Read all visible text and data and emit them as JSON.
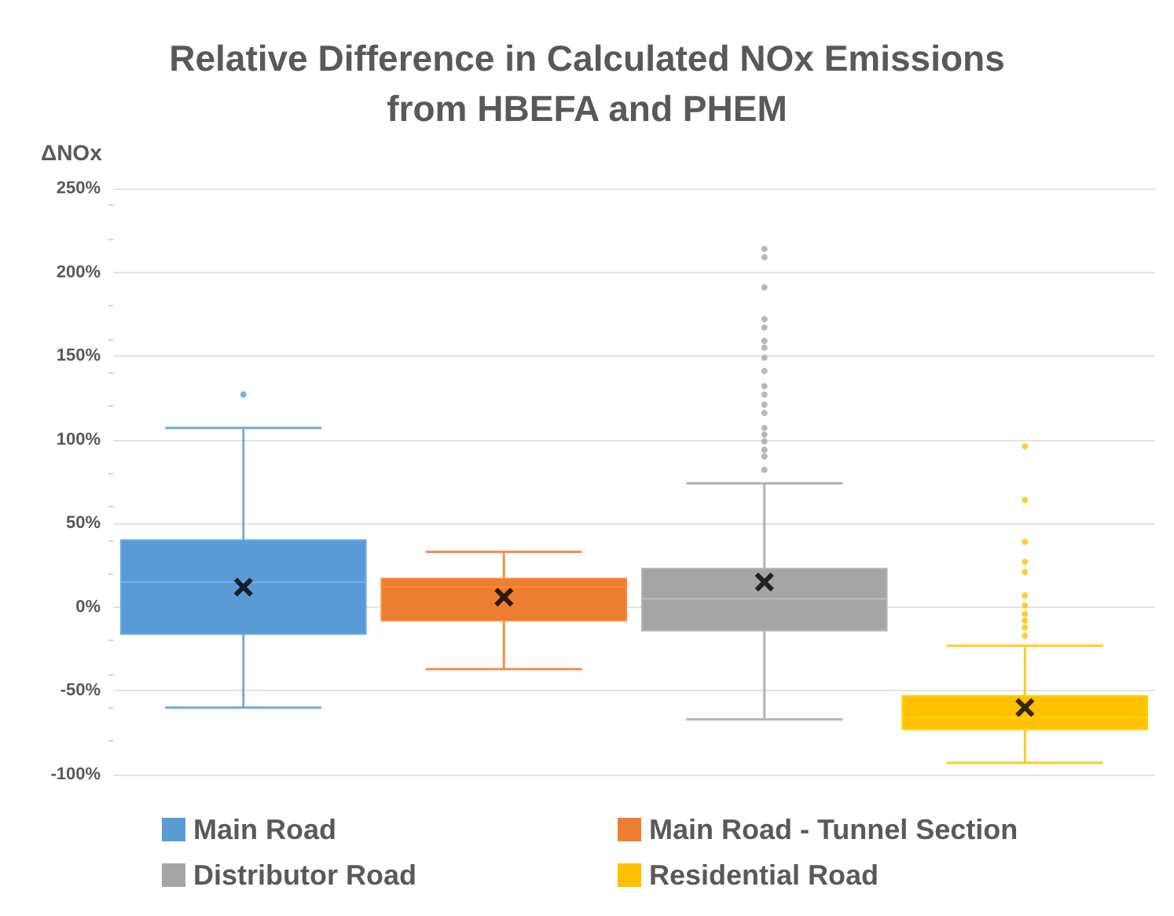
{
  "chart_data": {
    "type": "box",
    "title": "Relative Difference in Calculated NOx Emissions\nfrom HBEFA and PHEM",
    "ylabel": "ΔNOx",
    "categories": [
      null
    ],
    "series": [
      {
        "name": "Main Road",
        "color": "#5b9bd5",
        "boxes": [
          {
            "low": -60,
            "q1": -16,
            "median": 15,
            "q3": 40,
            "high": 107,
            "mean": 12,
            "outliers": [
              127
            ]
          }
        ]
      },
      {
        "name": "Main Road - Tunnel Section",
        "color": "#ed7d31",
        "boxes": [
          {
            "low": -37,
            "q1": -8,
            "median": 12,
            "q3": 17,
            "high": 33,
            "mean": 6
          }
        ]
      },
      {
        "name": "Distributor Road",
        "color": "#a5a5a5",
        "boxes": [
          {
            "low": -67,
            "q1": -14,
            "median": 5,
            "q3": 23,
            "high": 74,
            "mean": 15,
            "outliers": [
              214,
              209,
              191,
              172,
              167,
              159,
              155,
              149,
              141,
              132,
              127,
              121,
              116,
              107,
              103,
              99,
              94,
              90,
              82
            ]
          }
        ]
      },
      {
        "name": "Residential Road",
        "color": "#ffc000",
        "boxes": [
          {
            "low": -93,
            "q1": -73,
            "median": -66,
            "q3": -53,
            "high": -23,
            "mean": -60,
            "outliers": [
              96,
              64,
              39,
              27,
              21,
              7,
              1,
              -4,
              -8,
              -12,
              -17
            ]
          }
        ]
      }
    ],
    "ylim": [
      -100,
      250
    ],
    "yticks": [
      {
        "value": -100,
        "label": "-100%"
      },
      {
        "value": -50,
        "label": "-50%"
      },
      {
        "value": 0,
        "label": "0%"
      },
      {
        "value": 50,
        "label": "50%"
      },
      {
        "value": 100,
        "label": "100%"
      },
      {
        "value": 150,
        "label": "150%"
      },
      {
        "value": 200,
        "label": "200%"
      },
      {
        "value": 250,
        "label": "250%"
      }
    ],
    "grid": "y",
    "legend": "bottom",
    "marker": "circle"
  }
}
